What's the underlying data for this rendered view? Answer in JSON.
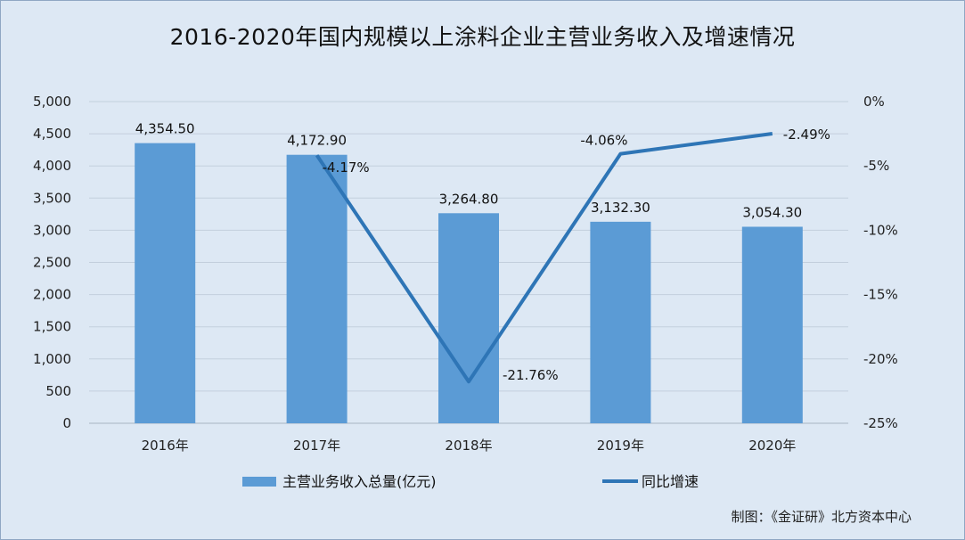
{
  "chart_data": {
    "title": "2016-2020年国内规模以上涂料企业主营业务收入及增速情况",
    "categories": [
      "2016年",
      "2017年",
      "2018年",
      "2019年",
      "2020年"
    ],
    "series": [
      {
        "name": "主营业务收入总量(亿元)",
        "type": "bar",
        "axis": "left",
        "values": [
          4354.5,
          4172.9,
          3264.8,
          3132.3,
          3054.3
        ],
        "labels": [
          "4,354.50",
          "4,172.90",
          "3,264.80",
          "3,132.30",
          "3,054.30"
        ],
        "color": "#5b9bd5"
      },
      {
        "name": "同比增速",
        "type": "line",
        "axis": "right",
        "values": [
          null,
          -4.17,
          -21.76,
          -4.06,
          -2.49
        ],
        "labels": [
          "",
          "-4.17%",
          "-21.76%",
          "-4.06%",
          "-2.49%"
        ],
        "color": "#2e75b6"
      }
    ],
    "y_left": {
      "min": 0,
      "max": 5000,
      "ticks": [
        0,
        500,
        1000,
        1500,
        2000,
        2500,
        3000,
        3500,
        4000,
        4500,
        5000
      ],
      "tick_labels": [
        "0",
        "500",
        "1,000",
        "1,500",
        "2,000",
        "2,500",
        "3,000",
        "3,500",
        "4,000",
        "4,500",
        "5,000"
      ]
    },
    "y_right": {
      "min": -25,
      "max": 0,
      "ticks": [
        0,
        -5,
        -10,
        -15,
        -20,
        -25
      ],
      "tick_labels": [
        "0%",
        "-5%",
        "-10%",
        "-15%",
        "-20%",
        "-25%"
      ]
    },
    "grid": true,
    "legend_position": "bottom",
    "credit": "制图：《金证研》北方资本中心"
  }
}
